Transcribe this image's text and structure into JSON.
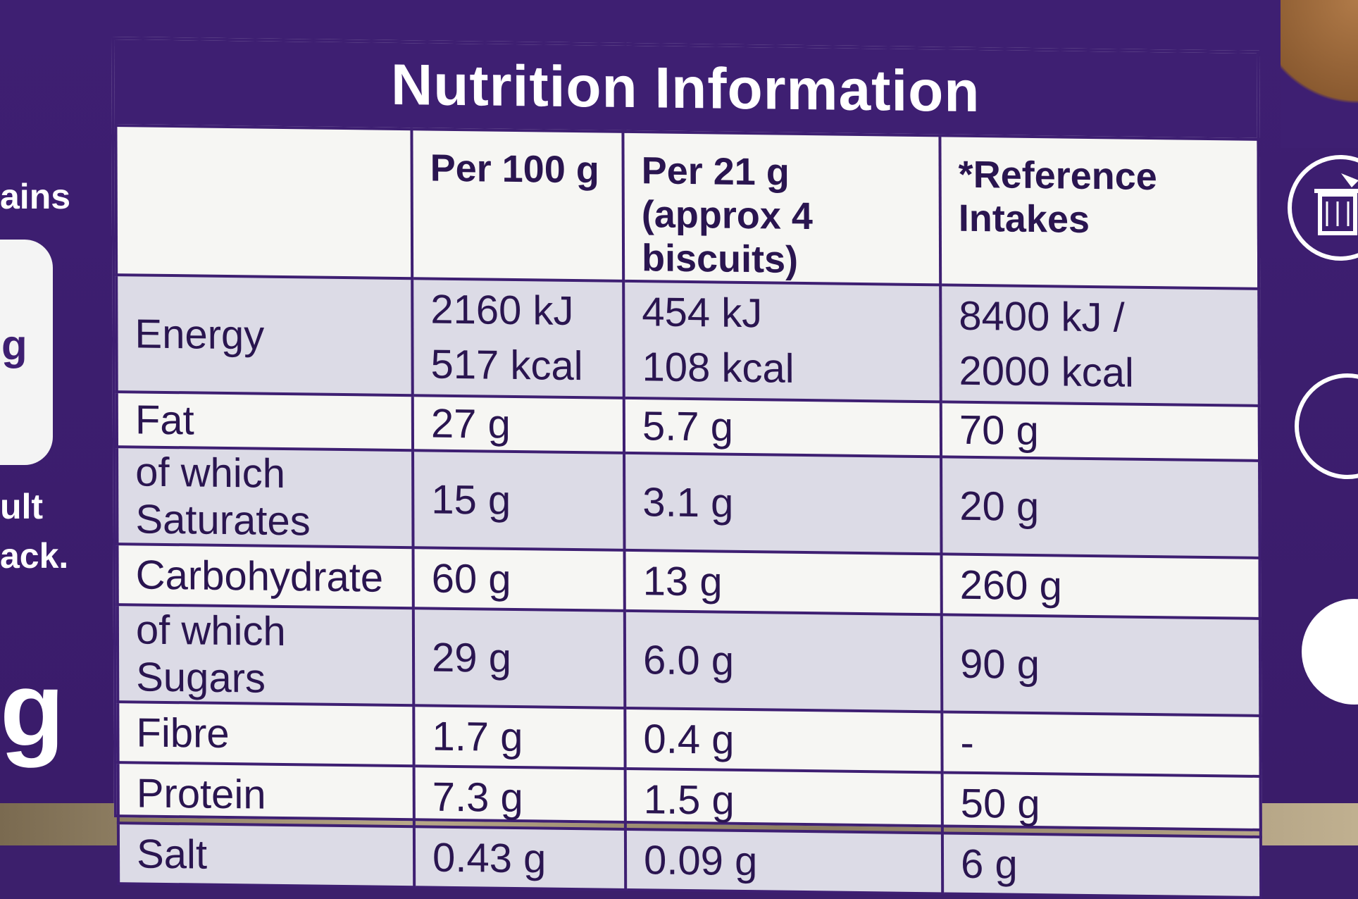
{
  "packaging": {
    "side_text_1": "ains",
    "side_text_2": "g",
    "side_text_3": "ult",
    "side_text_4": "ack.",
    "side_text_5": "g"
  },
  "table": {
    "title": "Nutrition Information",
    "columns": [
      "",
      "Per 100 g",
      "Per 21 g (approx 4 biscuits)",
      "*Reference Intakes"
    ],
    "col2_line1": "Per 21 g",
    "col2_line2": "(approx 4 biscuits)",
    "col3_line1": "*Reference",
    "col3_line2": "Intakes",
    "rows": [
      {
        "label": "Energy",
        "per100": "2160 kJ",
        "per100_b": "517 kcal",
        "per21": "454 kJ",
        "per21_b": "108 kcal",
        "ri": "8400 kJ /",
        "ri_b": "2000 kcal"
      },
      {
        "label": "Fat",
        "per100": "27 g",
        "per21": "5.7 g",
        "ri": "70 g"
      },
      {
        "label": "of which Saturates",
        "per100": "15 g",
        "per21": "3.1 g",
        "ri": "20 g"
      },
      {
        "label": "Carbohydrate",
        "per100": "60 g",
        "per21": "13 g",
        "ri": "260 g"
      },
      {
        "label": "of which Sugars",
        "per100": "29 g",
        "per21": "6.0 g",
        "ri": "90 g"
      },
      {
        "label": "Fibre",
        "per100": "1.7 g",
        "per21": "0.4 g",
        "ri": "-"
      },
      {
        "label": "Protein",
        "per100": "7.3 g",
        "per21": "1.5 g",
        "ri": "50 g"
      },
      {
        "label": "Salt",
        "per100": "0.43 g",
        "per21": "0.09 g",
        "ri": "6 g"
      }
    ]
  },
  "icons": [
    "recycling-bin-icon",
    "circular-arrow-icon",
    "suitable-vegetarians-badge-icon"
  ],
  "colors": {
    "brand_purple": "#3e1f72",
    "panel": "#f6f6f3",
    "shade": "#dcdbe6"
  }
}
